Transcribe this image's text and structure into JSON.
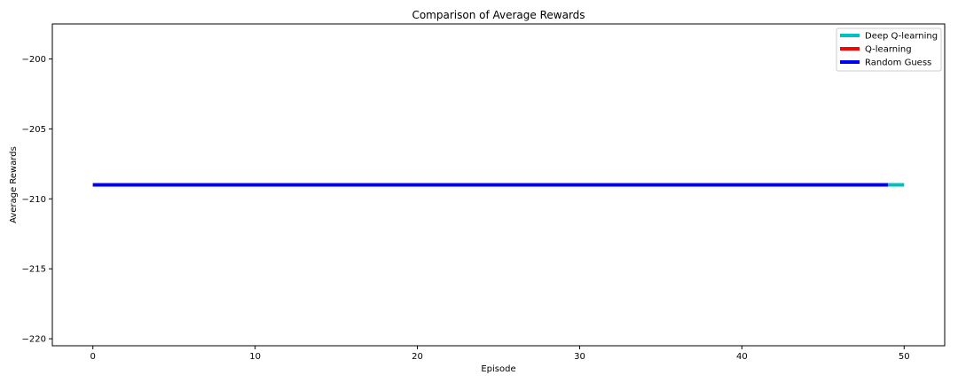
{
  "chart_data": {
    "type": "line",
    "title": "Comparison of Average Rewards",
    "xlabel": "Episode",
    "ylabel": "Average Rewards",
    "xlim": [
      -2.5,
      52.5
    ],
    "ylim": [
      -220.5,
      -197.5
    ],
    "x_ticks": [
      0,
      10,
      20,
      30,
      40,
      50
    ],
    "y_ticks": [
      -200,
      -205,
      -210,
      -215,
      -220
    ],
    "x_tick_labels": [
      "0",
      "10",
      "20",
      "30",
      "40",
      "50"
    ],
    "y_tick_labels": [
      "−200",
      "−205",
      "−210",
      "−215",
      "−220"
    ],
    "grid": false,
    "legend_position": "top-right",
    "series": [
      {
        "name": "Deep Q-learning",
        "color": "#00bfbf",
        "x": [
          0,
          50
        ],
        "y": [
          -209,
          -209
        ]
      },
      {
        "name": "Q-learning",
        "color": "#ff0000",
        "x": [
          0,
          49
        ],
        "y": [
          -209,
          -209
        ]
      },
      {
        "name": "Random Guess",
        "color": "#0000ff",
        "x": [
          0,
          49
        ],
        "y": [
          -209,
          -209
        ]
      }
    ]
  }
}
